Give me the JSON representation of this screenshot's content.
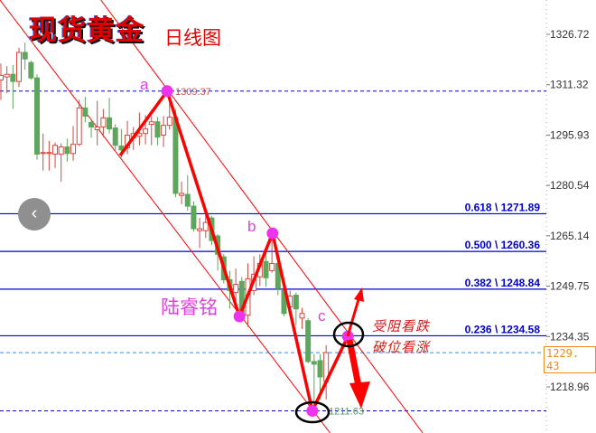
{
  "header": {
    "title": "现货黄金",
    "subtitle": "日线图"
  },
  "author": "陆睿铭",
  "notes": [
    "受阻看跌",
    "破位看涨"
  ],
  "wave_labels": {
    "a": "a",
    "b": "b",
    "c": "c"
  },
  "colors": {
    "up": "#d9453d",
    "down": "#5ea65e",
    "fib": "#0000d0",
    "zigzag": "#ff0000",
    "pivot": "#ee33ee",
    "channel": "#ff0000"
  },
  "current_price": "1229. 43",
  "chart_data": {
    "type": "candlestick",
    "title": "现货黄金",
    "ylim": [
      1205,
      1337
    ],
    "y_ticks": [
      "1326.72",
      "1311.32",
      "1295.93",
      "1280.54",
      "1265.14",
      "1249.75",
      "1234.35",
      "1218.96"
    ],
    "grid": false,
    "candles": [
      [
        1312.8,
        1317.8,
        1306.7,
        1314.2
      ],
      [
        1313.7,
        1317.0,
        1308.7,
        1314.5
      ],
      [
        1314.5,
        1317.3,
        1303.9,
        1312.3
      ],
      [
        1312.3,
        1322.6,
        1310.6,
        1321.2
      ],
      [
        1321.2,
        1324.2,
        1315.9,
        1319.2
      ],
      [
        1318.1,
        1318.7,
        1312.8,
        1313.4
      ],
      [
        1313.4,
        1314.5,
        1288.4,
        1290.1
      ],
      [
        1290.3,
        1296.4,
        1285.1,
        1290.6
      ],
      [
        1290.3,
        1294.2,
        1285.1,
        1290.6
      ],
      [
        1290.1,
        1293.7,
        1285.9,
        1292.8
      ],
      [
        1290.1,
        1293.4,
        1281.7,
        1292.3
      ],
      [
        1292.3,
        1294.8,
        1287.8,
        1290.3
      ],
      [
        1290.3,
        1298.7,
        1288.1,
        1293.1
      ],
      [
        1293.1,
        1306.7,
        1292.6,
        1304.2
      ],
      [
        1304.2,
        1307.6,
        1299.8,
        1301.7
      ],
      [
        1299.8,
        1300.9,
        1295.1,
        1298.4
      ],
      [
        1297.6,
        1306.4,
        1292.8,
        1298.4
      ],
      [
        1298.4,
        1303.9,
        1295.3,
        1301.2
      ],
      [
        1301.2,
        1307.3,
        1296.4,
        1297.8
      ],
      [
        1298.1,
        1299.2,
        1290.9,
        1292.8
      ],
      [
        1292.6,
        1297.8,
        1289.0,
        1291.4
      ],
      [
        1292.0,
        1300.3,
        1290.1,
        1295.9
      ],
      [
        1295.1,
        1298.4,
        1291.4,
        1296.4
      ],
      [
        1295.6,
        1302.8,
        1292.8,
        1296.4
      ],
      [
        1296.4,
        1302.0,
        1293.1,
        1297.8
      ],
      [
        1299.2,
        1301.7,
        1292.8,
        1300.0
      ],
      [
        1300.0,
        1301.4,
        1292.8,
        1295.3
      ],
      [
        1295.9,
        1301.7,
        1292.3,
        1298.9
      ],
      [
        1298.9,
        1309.37,
        1297.6,
        1301.4
      ],
      [
        1301.4,
        1303.9,
        1276.9,
        1278.1
      ],
      [
        1277.5,
        1281.7,
        1274.8,
        1278.1
      ],
      [
        1277.8,
        1283.7,
        1272.8,
        1274.2
      ],
      [
        1274.2,
        1275.6,
        1266.4,
        1267.3
      ],
      [
        1266.7,
        1270.6,
        1261.4,
        1267.3
      ],
      [
        1266.7,
        1272.0,
        1264.5,
        1269.2
      ],
      [
        1270.6,
        1271.2,
        1262.3,
        1263.7
      ],
      [
        1265.1,
        1265.6,
        1254.5,
        1259.5
      ],
      [
        1258.7,
        1259.5,
        1250.6,
        1251.7
      ],
      [
        1251.7,
        1254.5,
        1242.8,
        1248.4
      ],
      [
        1247.8,
        1255.1,
        1243.4,
        1250.3
      ],
      [
        1251.2,
        1252.6,
        1238.7,
        1240.0
      ],
      [
        1240.9,
        1256.7,
        1237.3,
        1252.0
      ],
      [
        1248.4,
        1258.9,
        1247.0,
        1253.4
      ],
      [
        1252.6,
        1259.5,
        1249.8,
        1256.7
      ],
      [
        1257.3,
        1260.1,
        1249.5,
        1252.3
      ],
      [
        1254.5,
        1265.6,
        1253.9,
        1256.7
      ],
      [
        1256.7,
        1258.1,
        1247.0,
        1249.0
      ],
      [
        1248.4,
        1249.8,
        1240.6,
        1241.4
      ],
      [
        1243.4,
        1248.4,
        1241.4,
        1246.7
      ],
      [
        1247.0,
        1247.8,
        1237.8,
        1242.8
      ],
      [
        1240.0,
        1243.1,
        1236.7,
        1241.4
      ],
      [
        1239.2,
        1240.0,
        1226.2,
        1226.7
      ],
      [
        1226.7,
        1229.0,
        1211.63,
        1225.9
      ],
      [
        1227.0,
        1229.0,
        1215.1,
        1222.0
      ],
      [
        1220.6,
        1231.7,
        1215.1,
        1229.43
      ]
    ],
    "fib_levels": [
      {
        "ratio": "0.618",
        "price": 1271.89,
        "label": "0.618 \\ 1271.89"
      },
      {
        "ratio": "0.500",
        "price": 1260.36,
        "label": "0.500 \\ 1260.36"
      },
      {
        "ratio": "0.382",
        "price": 1248.84,
        "label": "0.382 \\ 1248.84"
      },
      {
        "ratio": "0.236",
        "price": 1234.58,
        "label": "0.236 \\ 1234.58"
      }
    ],
    "high_marker": {
      "price": 1309.37,
      "label": "1309.37"
    },
    "low_marker": {
      "price": 1211.63,
      "label": "1211.63"
    },
    "last_close": 1229.43,
    "zigzag": [
      [
        19.8,
        1289.7
      ],
      [
        27.6,
        1309.37
      ],
      [
        39.6,
        1240.5
      ],
      [
        45.1,
        1265.9
      ],
      [
        51.7,
        1211.63
      ],
      [
        57.6,
        1234.4
      ]
    ],
    "channel": [
      [
        [
          -0.15,
          1337.2
        ],
        [
          54.1,
          1206.2
        ]
      ],
      [
        [
          16.6,
          1337.2
        ],
        [
          69.9,
          1205.2
        ]
      ]
    ]
  }
}
